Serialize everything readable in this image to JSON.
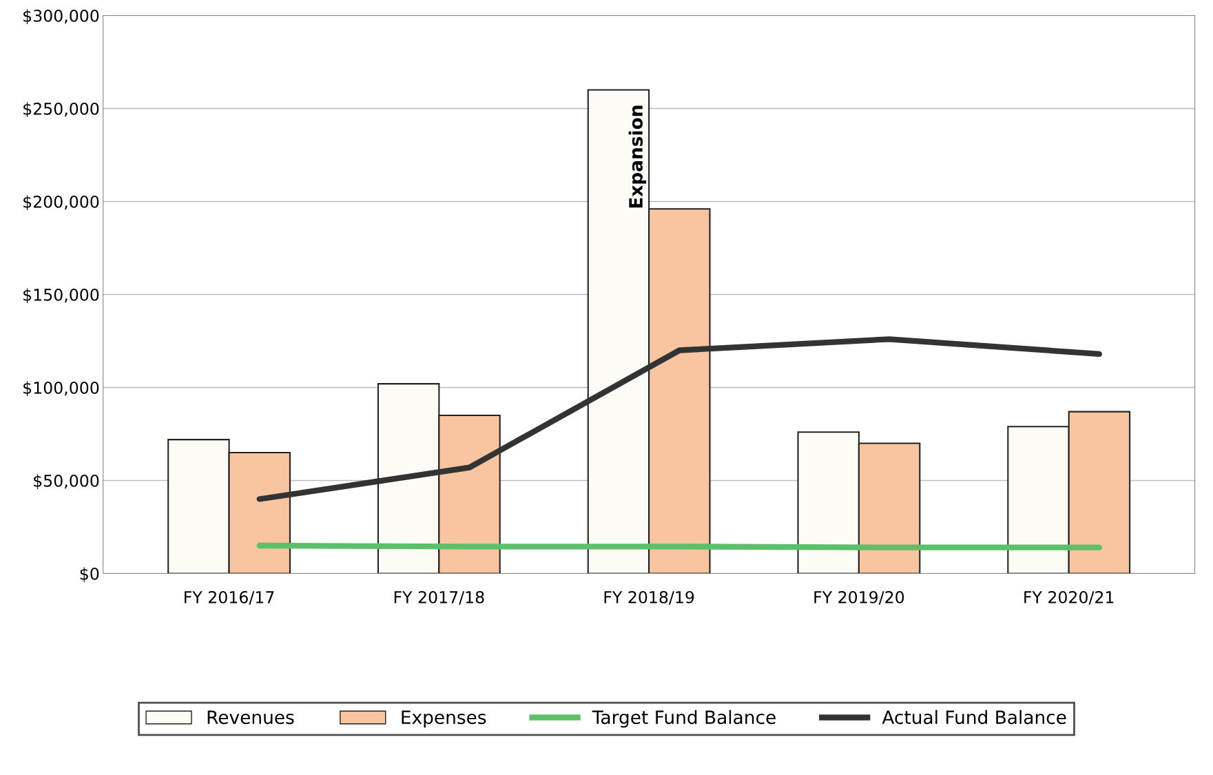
{
  "chart_data": {
    "type": "bar",
    "categories": [
      "FY 2016/17",
      "FY 2017/18",
      "FY 2018/19",
      "FY 2019/20",
      "FY 2020/21"
    ],
    "series": [
      {
        "name": "Revenues",
        "color": "#fcfbf5",
        "values": [
          72000,
          102000,
          260000,
          76000,
          79000
        ]
      },
      {
        "name": "Expenses",
        "color": "#f9c4a0",
        "values": [
          65000,
          85000,
          196000,
          70000,
          87000
        ]
      },
      {
        "name": "Target Fund Balance",
        "type": "line",
        "color": "#5cbf6a",
        "values": [
          15000,
          14500,
          14500,
          14000,
          14000
        ]
      },
      {
        "name": "Actual Fund Balance",
        "type": "line",
        "color": "#333333",
        "values": [
          40000,
          57000,
          120000,
          126000,
          118000
        ]
      }
    ],
    "ylim": [
      0,
      300000
    ],
    "yticks": [
      {
        "value": 0,
        "label": "$0"
      },
      {
        "value": 50000,
        "label": "$50,000"
      },
      {
        "value": 100000,
        "label": "$100,000"
      },
      {
        "value": 150000,
        "label": "$150,000"
      },
      {
        "value": 200000,
        "label": "$200,000"
      },
      {
        "value": 250000,
        "label": "$250,000"
      },
      {
        "value": 300000,
        "label": "$300,000"
      }
    ],
    "grid": "y",
    "legend": "bottom",
    "marker": "none",
    "line_style": "solid",
    "annotations": [
      {
        "text": "Expansion",
        "x": "FY 2018/19",
        "y": 260000
      }
    ]
  }
}
